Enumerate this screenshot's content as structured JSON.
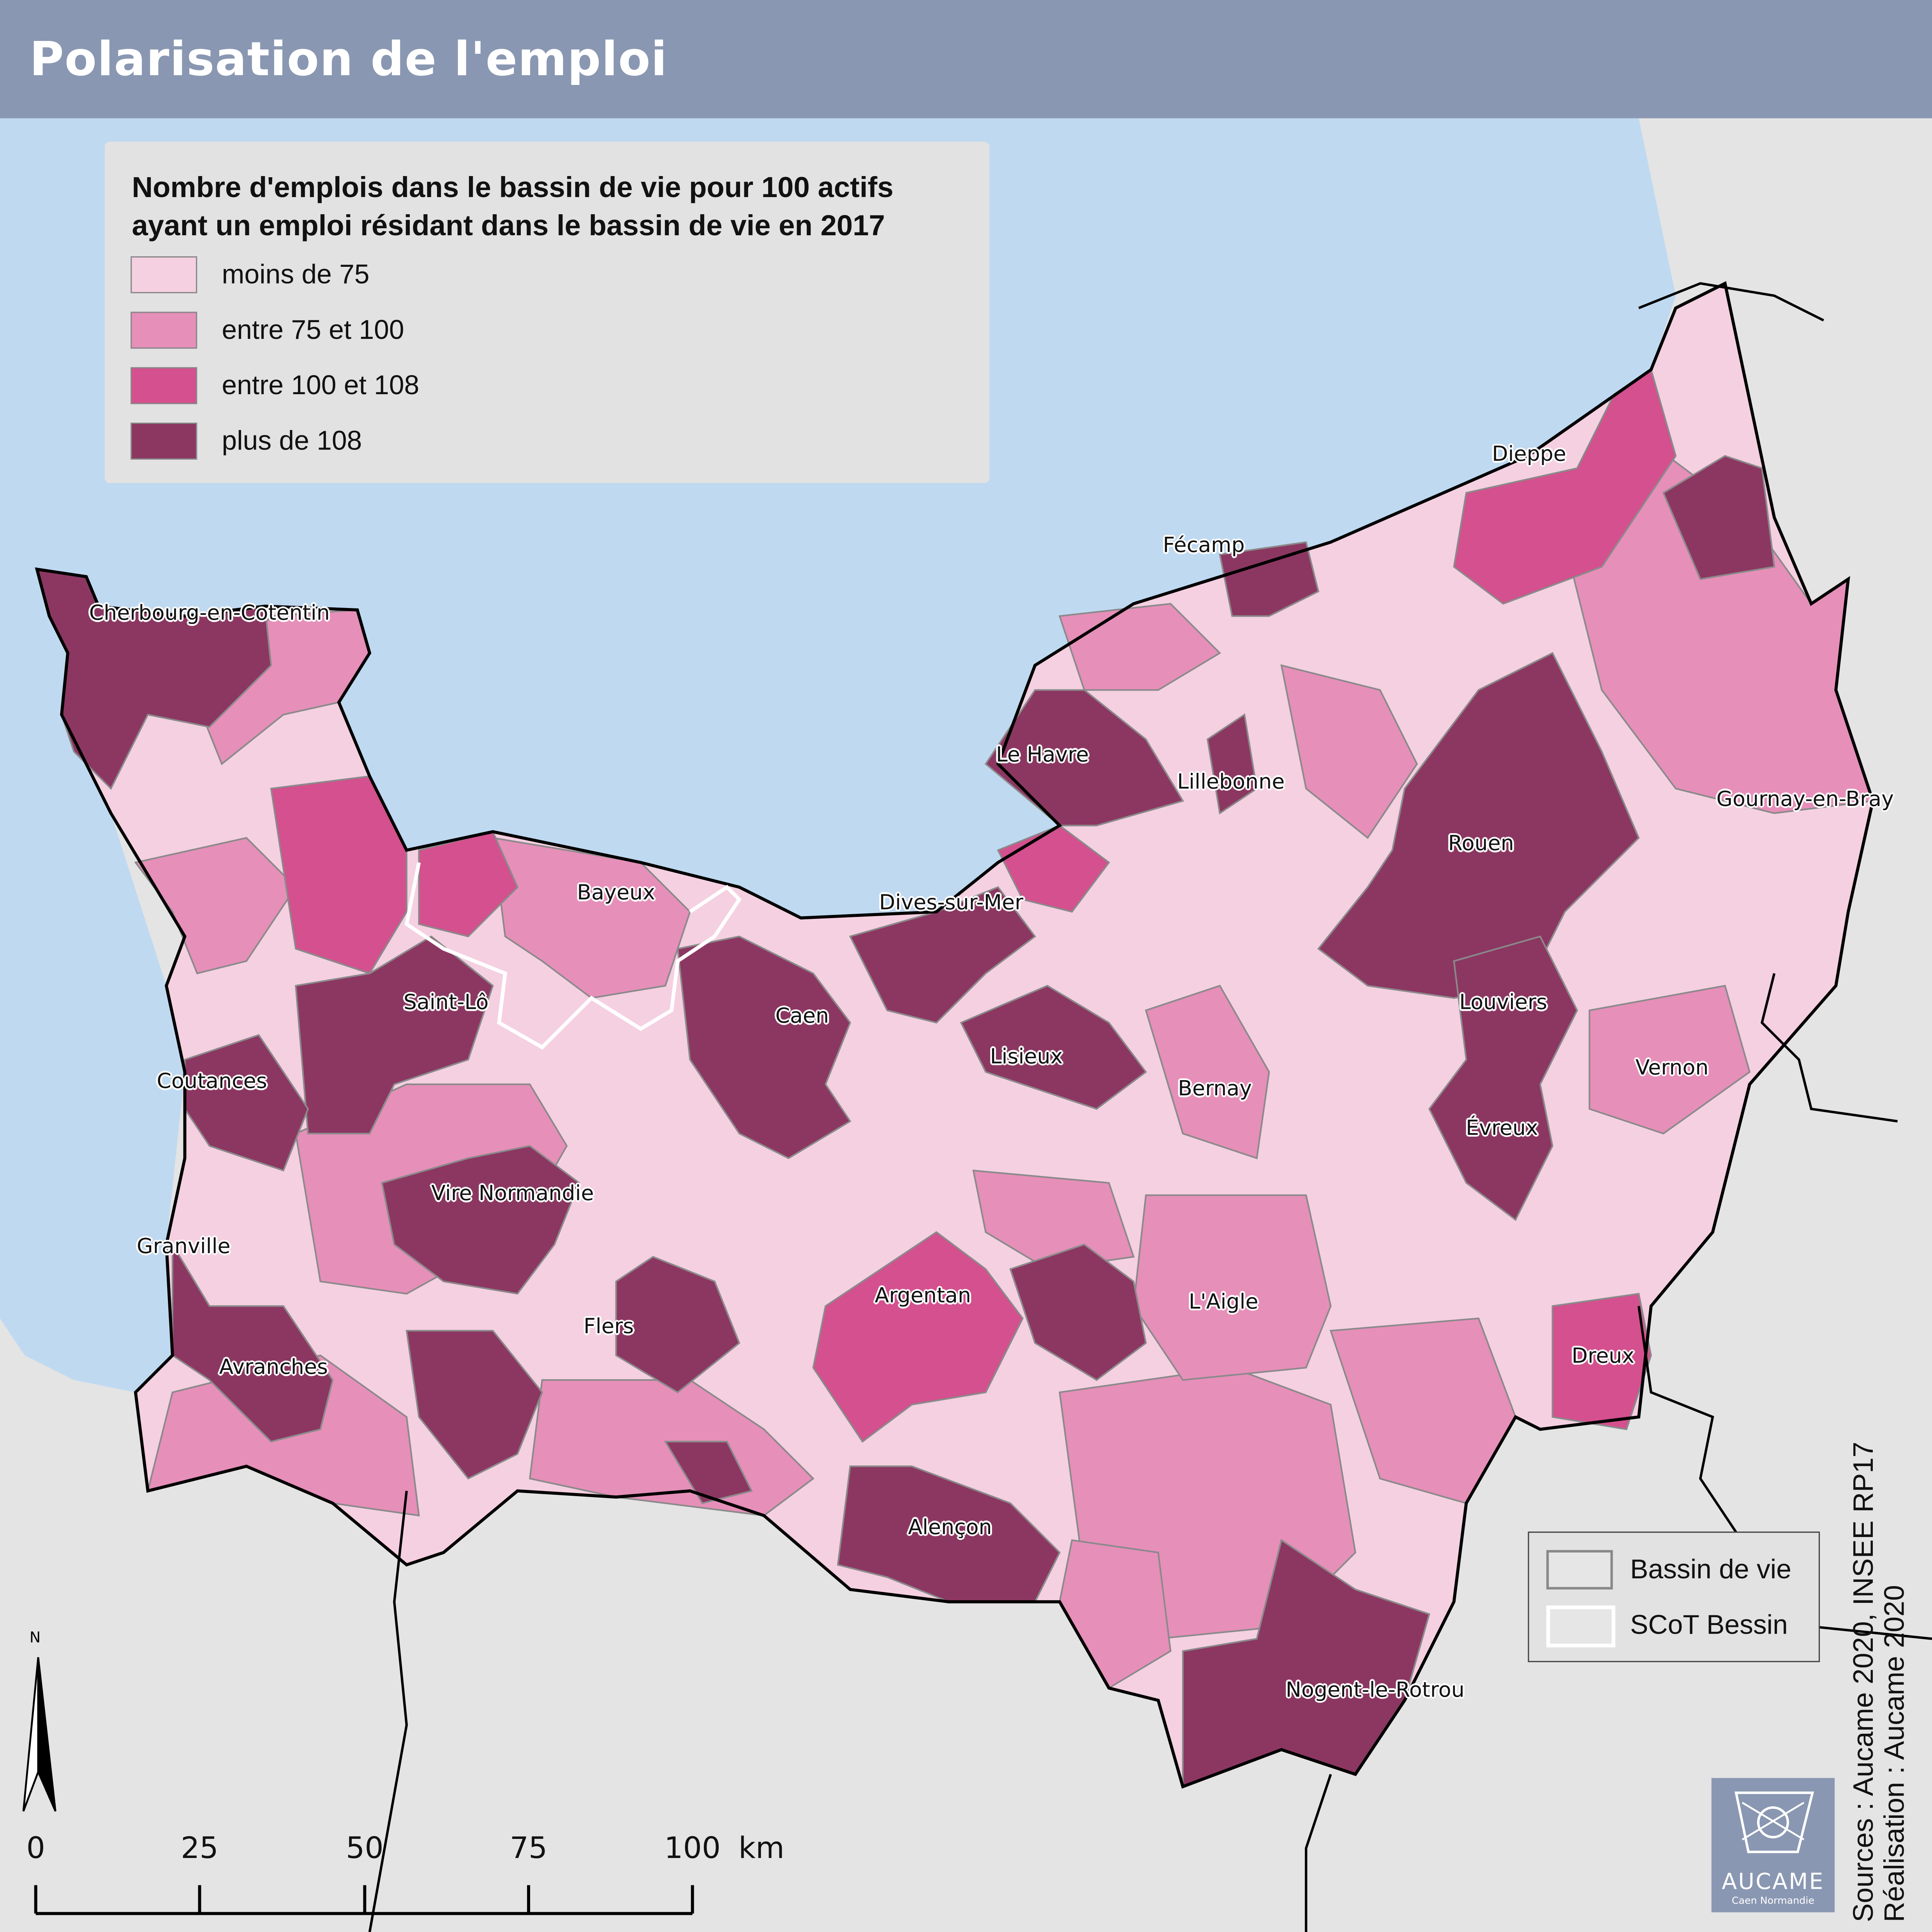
{
  "title": "Polarisation de l'emploi",
  "legend": {
    "title_line1": "Nombre d'emplois dans le bassin de vie pour 100 actifs",
    "title_line2": "ayant un emploi résidant dans le bassin de vie en 2017",
    "classes": [
      {
        "label": "moins de 75",
        "color": "#f5d0e1"
      },
      {
        "label": "entre 75 et 100",
        "color": "#e68fb9"
      },
      {
        "label": "entre 100 et 108",
        "color": "#d4508e"
      },
      {
        "label": "plus de 108",
        "color": "#8c3762"
      }
    ]
  },
  "boundaries_legend": {
    "bassin": "Bassin de vie",
    "scot": "SCoT Bessin"
  },
  "cities": [
    "Cherbourg-en-Cotentin",
    "Le Havre",
    "Fécamp",
    "Dieppe",
    "Lillebonne",
    "Rouen",
    "Gournay-en-Bray",
    "Bayeux",
    "Dives-sur-Mer",
    "Saint-Lô",
    "Caen",
    "Louviers",
    "Coutances",
    "Lisieux",
    "Bernay",
    "Vernon",
    "Évreux",
    "Vire Normandie",
    "Granville",
    "Argentan",
    "L'Aigle",
    "Flers",
    "Avranches",
    "Dreux",
    "Alençon",
    "Nogent-le-Rotrou"
  ],
  "north_label": "N",
  "scale": {
    "ticks": [
      "0",
      "25",
      "50",
      "75",
      "100"
    ],
    "unit": "km"
  },
  "credits": {
    "sources": "Sources : Aucame 2020, INSEE RP17",
    "realisation": "Réalisation : Aucame 2020"
  },
  "logo": {
    "name": "AUCAME",
    "subtitle": "Caen Normandie"
  },
  "colors": {
    "sea": "#bfd9f1",
    "land": "#e4e4e4",
    "header": "#8a97b2"
  }
}
